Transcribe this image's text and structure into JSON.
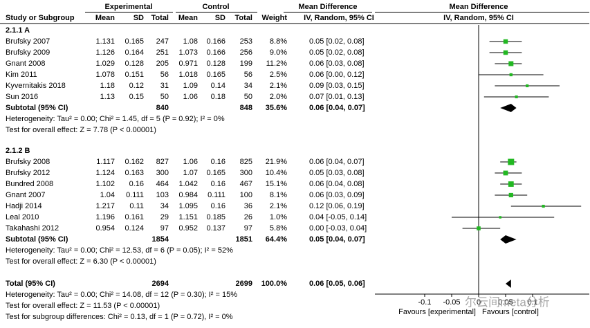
{
  "chart_data": {
    "type": "forest",
    "headers": {
      "experimental": "Experimental",
      "control": "Control",
      "md_left": "Mean Difference",
      "md_right": "Mean Difference",
      "study": "Study or Subgroup",
      "mean_e": "Mean",
      "sd_e": "SD",
      "total_e": "Total",
      "mean_c": "Mean",
      "sd_c": "SD",
      "total_c": "Total",
      "weight": "Weight",
      "method_left": "IV, Random, 95% CI",
      "method_right": "IV, Random, 95% CI"
    },
    "marker_color": "#22b822",
    "groups": [
      {
        "label": "2.1.1 A",
        "studies": [
          {
            "name": "Brufsky 2007",
            "mean_e": 1.131,
            "sd_e": 0.165,
            "n_e": 247,
            "mean_c": 1.08,
            "sd_c": 0.166,
            "n_c": 253,
            "weight": 8.8,
            "weight_label": "8.8%",
            "md": 0.05,
            "lo": 0.02,
            "hi": 0.08,
            "ci_label": "0.05 [0.02, 0.08]"
          },
          {
            "name": "Brufsky 2009",
            "mean_e": 1.126,
            "sd_e": 0.164,
            "n_e": 251,
            "mean_c": 1.073,
            "sd_c": 0.166,
            "n_c": 256,
            "weight": 9.0,
            "weight_label": "9.0%",
            "md": 0.05,
            "lo": 0.02,
            "hi": 0.08,
            "ci_label": "0.05 [0.02, 0.08]"
          },
          {
            "name": "Gnant 2008",
            "mean_e": 1.029,
            "sd_e": 0.128,
            "n_e": 205,
            "mean_c": 0.971,
            "sd_c": 0.128,
            "n_c": 199,
            "weight": 11.2,
            "weight_label": "11.2%",
            "md": 0.06,
            "lo": 0.03,
            "hi": 0.08,
            "ci_label": "0.06 [0.03, 0.08]"
          },
          {
            "name": "Kim 2011",
            "mean_e": 1.078,
            "sd_e": 0.151,
            "n_e": 56,
            "mean_c": 1.018,
            "sd_c": 0.165,
            "n_c": 56,
            "weight": 2.5,
            "weight_label": "2.5%",
            "md": 0.06,
            "lo": 0.0,
            "hi": 0.12,
            "ci_label": "0.06 [0.00, 0.12]"
          },
          {
            "name": "Kyvernitakis 2018",
            "mean_e": 1.18,
            "sd_e": 0.12,
            "n_e": 31,
            "mean_c": 1.09,
            "sd_c": 0.14,
            "n_c": 34,
            "weight": 2.1,
            "weight_label": "2.1%",
            "md": 0.09,
            "lo": 0.03,
            "hi": 0.15,
            "ci_label": "0.09 [0.03, 0.15]"
          },
          {
            "name": "Sun 2016",
            "mean_e": 1.13,
            "sd_e": 0.15,
            "n_e": 50,
            "mean_c": 1.06,
            "sd_c": 0.18,
            "n_c": 50,
            "weight": 2.0,
            "weight_label": "2.0%",
            "md": 0.07,
            "lo": 0.01,
            "hi": 0.13,
            "ci_label": "0.07 [0.01, 0.13]"
          }
        ],
        "subtotal": {
          "label": "Subtotal (95% CI)",
          "n_e": 840,
          "n_c": 848,
          "weight": 35.6,
          "weight_label": "35.6%",
          "md": 0.06,
          "lo": 0.04,
          "hi": 0.07,
          "ci_label": "0.06 [0.04, 0.07]"
        },
        "heterogeneity": "Heterogeneity: Tau² = 0.00; Chi² = 1.45, df = 5 (P = 0.92); I² = 0%",
        "overall_test": "Test for overall effect: Z = 7.78 (P < 0.00001)"
      },
      {
        "label": "2.1.2 B",
        "studies": [
          {
            "name": "Brufsky 2008",
            "mean_e": 1.117,
            "sd_e": 0.162,
            "n_e": 827,
            "mean_c": 1.06,
            "sd_c": 0.16,
            "n_c": 825,
            "weight": 21.9,
            "weight_label": "21.9%",
            "md": 0.06,
            "lo": 0.04,
            "hi": 0.07,
            "ci_label": "0.06 [0.04, 0.07]"
          },
          {
            "name": "Brufsky 2012",
            "mean_e": 1.124,
            "sd_e": 0.163,
            "n_e": 300,
            "mean_c": 1.07,
            "sd_c": 0.165,
            "n_c": 300,
            "weight": 10.4,
            "weight_label": "10.4%",
            "md": 0.05,
            "lo": 0.03,
            "hi": 0.08,
            "ci_label": "0.05 [0.03, 0.08]"
          },
          {
            "name": "Bundred 2008",
            "mean_e": 1.102,
            "sd_e": 0.16,
            "n_e": 464,
            "mean_c": 1.042,
            "sd_c": 0.16,
            "n_c": 467,
            "weight": 15.1,
            "weight_label": "15.1%",
            "md": 0.06,
            "lo": 0.04,
            "hi": 0.08,
            "ci_label": "0.06 [0.04, 0.08]"
          },
          {
            "name": "Gnant 2007",
            "mean_e": 1.04,
            "sd_e": 0.111,
            "n_e": 103,
            "mean_c": 0.984,
            "sd_c": 0.111,
            "n_c": 100,
            "weight": 8.1,
            "weight_label": "8.1%",
            "md": 0.06,
            "lo": 0.03,
            "hi": 0.09,
            "ci_label": "0.06 [0.03, 0.09]"
          },
          {
            "name": "Hadji 2014",
            "mean_e": 1.217,
            "sd_e": 0.11,
            "n_e": 34,
            "mean_c": 1.095,
            "sd_c": 0.16,
            "n_c": 36,
            "weight": 2.1,
            "weight_label": "2.1%",
            "md": 0.12,
            "lo": 0.06,
            "hi": 0.19,
            "ci_label": "0.12 [0.06, 0.19]"
          },
          {
            "name": "Leal 2010",
            "mean_e": 1.196,
            "sd_e": 0.161,
            "n_e": 29,
            "mean_c": 1.151,
            "sd_c": 0.185,
            "n_c": 26,
            "weight": 1.0,
            "weight_label": "1.0%",
            "md": 0.04,
            "lo": -0.05,
            "hi": 0.14,
            "ci_label": "0.04 [-0.05, 0.14]"
          },
          {
            "name": "Takahashi 2012",
            "mean_e": 0.954,
            "sd_e": 0.124,
            "n_e": 97,
            "mean_c": 0.952,
            "sd_c": 0.137,
            "n_c": 97,
            "weight": 5.8,
            "weight_label": "5.8%",
            "md": 0.0,
            "lo": -0.03,
            "hi": 0.04,
            "ci_label": "0.00 [-0.03, 0.04]"
          }
        ],
        "subtotal": {
          "label": "Subtotal (95% CI)",
          "n_e": 1854,
          "n_c": 1851,
          "weight": 64.4,
          "weight_label": "64.4%",
          "md": 0.05,
          "lo": 0.04,
          "hi": 0.07,
          "ci_label": "0.05 [0.04, 0.07]"
        },
        "heterogeneity": "Heterogeneity: Tau² = 0.00; Chi² = 12.53, df = 6 (P = 0.05); I² = 52%",
        "overall_test": "Test for overall effect: Z = 6.30 (P < 0.00001)"
      }
    ],
    "total": {
      "label": "Total (95% CI)",
      "n_e": 2694,
      "n_c": 2699,
      "weight": 100.0,
      "weight_label": "100.0%",
      "md": 0.06,
      "lo": 0.05,
      "hi": 0.06,
      "ci_label": "0.06 [0.05, 0.06]"
    },
    "total_heterogeneity": "Heterogeneity: Tau² = 0.00; Chi² = 14.08, df = 12 (P = 0.30); I² = 15%",
    "total_test": "Test for overall effect: Z = 11.53 (P < 0.00001)",
    "subgroup_test": "Test for subgroup differences: Chi² = 0.13, df = 1 (P = 0.72), I² = 0%",
    "xlim": [
      -0.1,
      0.1
    ],
    "xticks": [
      -0.1,
      -0.05,
      0,
      0.05,
      0.1
    ],
    "favours_left": "Favours [experimental]",
    "favours_right": "Favours [control]",
    "watermark": "尔云间meta分析"
  }
}
